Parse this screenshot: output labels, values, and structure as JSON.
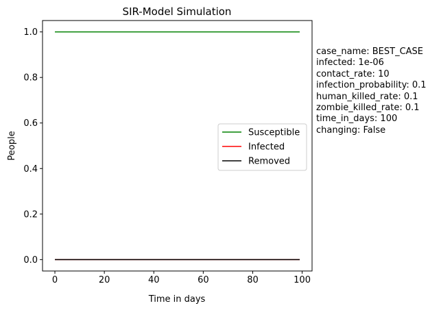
{
  "chart_data": {
    "type": "line",
    "title": "SIR-Model Simulation",
    "xlabel": "Time in days",
    "ylabel": "People",
    "xlim": [
      -5,
      104
    ],
    "ylim": [
      -0.05,
      1.05
    ],
    "xticks": [
      0,
      20,
      40,
      60,
      80,
      100
    ],
    "xtick_labels": [
      "0",
      "20",
      "40",
      "60",
      "80",
      "100"
    ],
    "yticks": [
      0.0,
      0.2,
      0.4,
      0.6,
      0.8,
      1.0
    ],
    "ytick_labels": [
      "0.0",
      "0.2",
      "0.4",
      "0.6",
      "0.8",
      "1.0"
    ],
    "grid": false,
    "legend_position": "center-right",
    "series": [
      {
        "name": "Susceptible",
        "color": "#008000",
        "x": [
          0,
          99
        ],
        "y": [
          1.0,
          1.0
        ]
      },
      {
        "name": "Infected",
        "color": "#ff0000",
        "x": [
          0,
          99
        ],
        "y": [
          0.0,
          0.0
        ]
      },
      {
        "name": "Removed",
        "color": "#000000",
        "x": [
          0,
          99
        ],
        "y": [
          0.0,
          0.0
        ]
      }
    ]
  },
  "parameters": {
    "lines": [
      "case_name: BEST_CASE",
      "infected: 1e-06",
      "contact_rate: 10",
      "infection_probability: 0.1",
      "human_killed_rate: 0.1",
      "zombie_killed_rate: 0.1",
      "time_in_days: 100",
      "changing: False"
    ]
  }
}
